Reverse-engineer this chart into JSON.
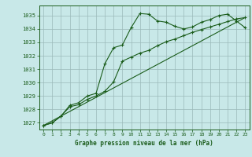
{
  "title": "Graphe pression niveau de la mer (hPa)",
  "bg_color": "#c8e8e8",
  "plot_bg_color": "#c8e8e8",
  "line_color": "#1a5c1a",
  "grid_color": "#9bbaba",
  "ylim": [
    1026.5,
    1035.75
  ],
  "xlim": [
    -0.5,
    23.5
  ],
  "yticks": [
    1027,
    1028,
    1029,
    1030,
    1031,
    1032,
    1033,
    1034,
    1035
  ],
  "xticks": [
    0,
    1,
    2,
    3,
    4,
    5,
    6,
    7,
    8,
    9,
    10,
    11,
    12,
    13,
    14,
    15,
    16,
    17,
    18,
    19,
    20,
    21,
    22,
    23
  ],
  "series1_x": [
    0,
    1,
    2,
    3,
    4,
    5,
    6,
    7,
    8,
    9,
    10,
    11,
    12,
    13,
    14,
    15,
    16,
    17,
    18,
    19,
    20,
    21,
    22,
    23
  ],
  "series1_y": [
    1026.8,
    1027.0,
    1027.5,
    1028.3,
    1028.5,
    1029.0,
    1029.2,
    1031.4,
    1032.6,
    1032.8,
    1034.1,
    1035.15,
    1035.1,
    1034.6,
    1034.5,
    1034.2,
    1034.0,
    1034.15,
    1034.5,
    1034.7,
    1035.0,
    1035.1,
    1034.6,
    1034.1
  ],
  "series2_x": [
    0,
    1,
    2,
    3,
    4,
    5,
    6,
    7,
    8,
    9,
    10,
    11,
    12,
    13,
    14,
    15,
    16,
    17,
    18,
    19,
    20,
    21,
    22,
    23
  ],
  "series2_y": [
    1026.8,
    1027.0,
    1027.5,
    1028.2,
    1028.35,
    1028.75,
    1029.0,
    1029.35,
    1030.05,
    1031.6,
    1031.9,
    1032.2,
    1032.4,
    1032.75,
    1033.05,
    1033.25,
    1033.5,
    1033.75,
    1033.95,
    1034.15,
    1034.35,
    1034.55,
    1034.75,
    1034.85
  ],
  "series3_x": [
    0,
    23
  ],
  "series3_y": [
    1026.8,
    1034.85
  ]
}
